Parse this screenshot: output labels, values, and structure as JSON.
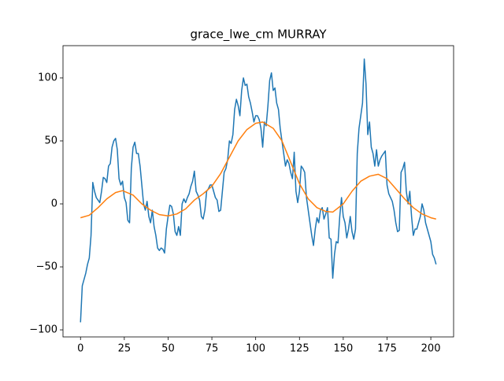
{
  "chart_data": {
    "type": "line",
    "title": "grace_lwe_cm MURRAY",
    "series": [
      {
        "color": "#1f77b4",
        "x": [
          0,
          1,
          2,
          3,
          4,
          5,
          6,
          7,
          8,
          9,
          10,
          11,
          12,
          13,
          14,
          15,
          16,
          17,
          18,
          19,
          20,
          21,
          22,
          23,
          24,
          25,
          26,
          27,
          28,
          29,
          30,
          31,
          32,
          33,
          34,
          35,
          36,
          37,
          38,
          39,
          40,
          41,
          42,
          43,
          44,
          45,
          46,
          47,
          48,
          49,
          50,
          51,
          52,
          53,
          54,
          55,
          56,
          57,
          58,
          59,
          60,
          61,
          62,
          63,
          64,
          65,
          66,
          67,
          68,
          69,
          70,
          71,
          72,
          73,
          74,
          75,
          76,
          77,
          78,
          79,
          80,
          81,
          82,
          83,
          84,
          85,
          86,
          87,
          88,
          89,
          90,
          91,
          92,
          93,
          94,
          95,
          96,
          97,
          98,
          99,
          100,
          101,
          102,
          103,
          104,
          105,
          106,
          107,
          108,
          109,
          110,
          111,
          112,
          113,
          114,
          115,
          116,
          117,
          118,
          119,
          120,
          121,
          122,
          123,
          124,
          125,
          126,
          127,
          128,
          129,
          130,
          131,
          132,
          133,
          134,
          135,
          136,
          137,
          138,
          139,
          140,
          141,
          142,
          143,
          144,
          145,
          146,
          147,
          148,
          149,
          150,
          151,
          152,
          153,
          154,
          155,
          156,
          157,
          158,
          159,
          160,
          161,
          162,
          163,
          164,
          165,
          166,
          167,
          168,
          169,
          170,
          171,
          172,
          173,
          174,
          175,
          176,
          177,
          178,
          179,
          180,
          181,
          182,
          183,
          184,
          185,
          186,
          187,
          188,
          189,
          190,
          191,
          192,
          193,
          194,
          195,
          196,
          197,
          198,
          199,
          200,
          201,
          202,
          203
        ],
        "values": [
          -94,
          -65,
          -60,
          -55,
          -48,
          -43,
          -25,
          17,
          10,
          5,
          3,
          1,
          10,
          21,
          20,
          17,
          30,
          32,
          45,
          50,
          52,
          43,
          20,
          15,
          18,
          5,
          1,
          -13,
          -15,
          28,
          45,
          49,
          40,
          40,
          30,
          15,
          0,
          -5,
          2,
          -10,
          -15,
          -5,
          -18,
          -25,
          -35,
          -37,
          -35,
          -36,
          -39,
          -20,
          -10,
          -1,
          -2,
          -8,
          -22,
          -25,
          -18,
          -25,
          0,
          4,
          1,
          5,
          8,
          14,
          18,
          26,
          10,
          7,
          3,
          -10,
          -12,
          -5,
          10,
          12,
          15,
          15,
          10,
          5,
          3,
          -6,
          -5,
          10,
          25,
          28,
          35,
          50,
          48,
          55,
          75,
          83,
          78,
          70,
          90,
          100,
          94,
          95,
          85,
          80,
          73,
          65,
          70,
          70,
          67,
          60,
          45,
          65,
          62,
          78,
          98,
          104,
          90,
          92,
          80,
          75,
          60,
          50,
          40,
          30,
          35,
          32,
          25,
          20,
          41,
          10,
          1,
          10,
          30,
          28,
          25,
          5,
          -5,
          -15,
          -25,
          -33,
          -20,
          -11,
          -15,
          -5,
          -3,
          -12,
          -8,
          -3,
          -27,
          -28,
          -59,
          -40,
          -30,
          -31,
          -10,
          5,
          -10,
          -15,
          -27,
          -20,
          -10,
          -22,
          -28,
          -20,
          40,
          60,
          70,
          80,
          115,
          95,
          55,
          65,
          45,
          40,
          30,
          43,
          30,
          35,
          38,
          40,
          42,
          15,
          8,
          5,
          2,
          -5,
          -15,
          -22,
          -21,
          25,
          28,
          33,
          10,
          0,
          10,
          -10,
          -25,
          -20,
          -20,
          -15,
          -10,
          0,
          -5,
          -15,
          -20,
          -25,
          -30,
          -40,
          -43,
          -48
        ]
      },
      {
        "color": "#ff7f0e",
        "x": [
          0,
          5,
          10,
          15,
          20,
          24,
          30,
          35,
          40,
          45,
          50,
          55,
          60,
          65,
          70,
          75,
          80,
          85,
          90,
          95,
          100,
          104,
          110,
          115,
          120,
          125,
          130,
          135,
          140,
          144,
          150,
          155,
          160,
          165,
          170,
          175,
          180,
          185,
          190,
          195,
          200,
          203
        ],
        "values": [
          -11,
          -9,
          -3,
          4,
          9,
          10.5,
          7,
          0,
          -5,
          -8.5,
          -9.5,
          -8,
          -4,
          3,
          8,
          14,
          24,
          37,
          50,
          59,
          64,
          65,
          60,
          50,
          33,
          16,
          4,
          -3,
          -6,
          -6.5,
          0,
          10,
          18,
          22,
          23.5,
          20,
          12,
          4,
          -3,
          -8,
          -11,
          -12
        ]
      }
    ],
    "xlim": [
      -10,
      213
    ],
    "ylim": [
      -105.6,
      125.6
    ],
    "xticks": [
      0,
      25,
      50,
      75,
      100,
      125,
      150,
      175,
      200
    ],
    "yticks": [
      {
        "value": -100,
        "label": "−100"
      },
      {
        "value": -50,
        "label": "−50"
      },
      0,
      50,
      100
    ]
  }
}
